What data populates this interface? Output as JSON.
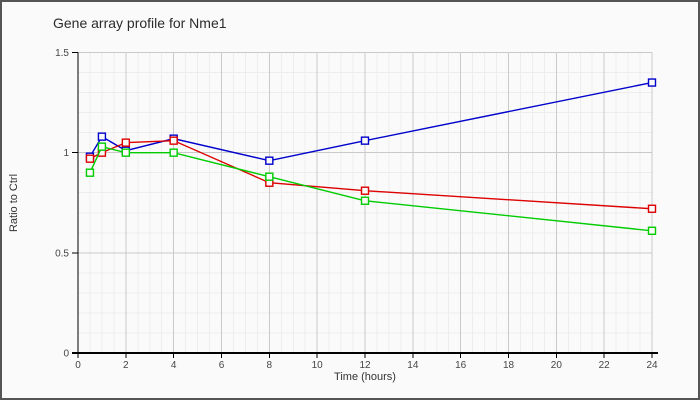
{
  "window": {
    "title": "Gene array profile for Nme1"
  },
  "chart_data": {
    "type": "line",
    "title": "Gene array profile for Nme1",
    "xlabel": "Time (hours)",
    "ylabel": "Ratio to Ctrl",
    "xlim": [
      0,
      24
    ],
    "ylim": [
      0,
      1.5
    ],
    "x_major_ticks": [
      0,
      2,
      4,
      6,
      8,
      10,
      12,
      14,
      16,
      18,
      20,
      22,
      24
    ],
    "x_minor_step": 0.5,
    "y_major_ticks": [
      0,
      0.5,
      1,
      1.5
    ],
    "y_tick_labels": [
      "0",
      "0.5",
      "1",
      "1.5"
    ],
    "y_minor_step": 0.1,
    "grid": "on",
    "legend": "none",
    "marker": "open-square",
    "x": [
      0.5,
      1,
      2,
      4,
      8,
      12,
      24
    ],
    "series": [
      {
        "name": "blue",
        "color": "#0000cc",
        "values": [
          0.98,
          1.08,
          1.01,
          1.07,
          0.96,
          1.06,
          1.35
        ]
      },
      {
        "name": "red",
        "color": "#dd0000",
        "values": [
          0.97,
          1.0,
          1.05,
          1.06,
          0.85,
          0.81,
          0.72
        ]
      },
      {
        "name": "green",
        "color": "#00cc00",
        "values": [
          0.9,
          1.03,
          1.0,
          1.0,
          0.88,
          0.76,
          0.61
        ]
      }
    ],
    "colors": {
      "background": "#fafafa",
      "grid_minor": "#ededed",
      "grid_major": "#c9c9c9",
      "axis": "#000000",
      "tick_text": "#454545",
      "frame_border": "#555555"
    }
  }
}
